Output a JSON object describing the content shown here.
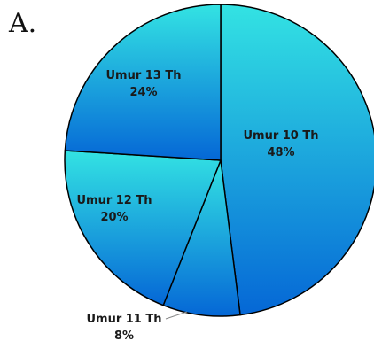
{
  "panel_label": "A.",
  "colors": {
    "gradient_light": "#33E3E3",
    "gradient_dark": "#0567D6",
    "outline": "#000000"
  },
  "chart_data": {
    "type": "pie",
    "title": "",
    "start_angle_deg": 0,
    "direction": "clockwise",
    "slices": [
      {
        "label": "Umur 10 Th",
        "value": 48,
        "display": "48%"
      },
      {
        "label": "Umur 11 Th",
        "value": 8,
        "display": "8%",
        "leader_line": true
      },
      {
        "label": "Umur 12 Th",
        "value": 20,
        "display": "20%"
      },
      {
        "label": "Umur 13 Th",
        "value": 24,
        "display": "24%"
      }
    ]
  }
}
